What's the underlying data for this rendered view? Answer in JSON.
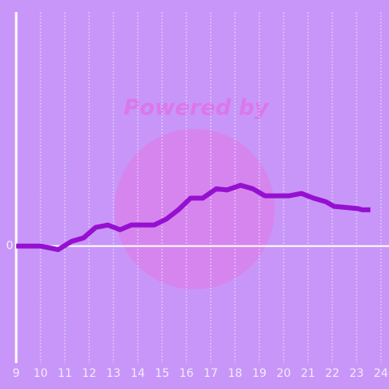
{
  "watermark": "Powered by",
  "chart_data": {
    "type": "line",
    "x": [
      9,
      10,
      10.73,
      11.27,
      11.77,
      12.27,
      12.77,
      13.27,
      13.73,
      14.27,
      14.67,
      15.17,
      15.67,
      16.17,
      16.67,
      17.23,
      17.67,
      18.23,
      18.73,
      19.23,
      19.67,
      20.23,
      20.73,
      21.23,
      21.73,
      22.07,
      22.57,
      23.07,
      23.23,
      23.57
    ],
    "series": [
      {
        "color": "#9510d0",
        "values": [
          0,
          0,
          -0.03,
          0.04,
          0.07,
          0.16,
          0.18,
          0.14,
          0.18,
          0.18,
          0.18,
          0.23,
          0.31,
          0.41,
          0.41,
          0.49,
          0.48,
          0.52,
          0.49,
          0.43,
          0.43,
          0.43,
          0.45,
          0.41,
          0.38,
          0.34,
          0.33,
          0.32,
          0.31,
          0.31
        ]
      }
    ],
    "xlim": [
      9,
      24
    ],
    "xticks": [
      9,
      10,
      11,
      12,
      13,
      14,
      15,
      16,
      17,
      18,
      19,
      20,
      21,
      22,
      23,
      24
    ],
    "ylim": [
      -1,
      2
    ],
    "yticks": [
      0
    ],
    "grid": true
  }
}
